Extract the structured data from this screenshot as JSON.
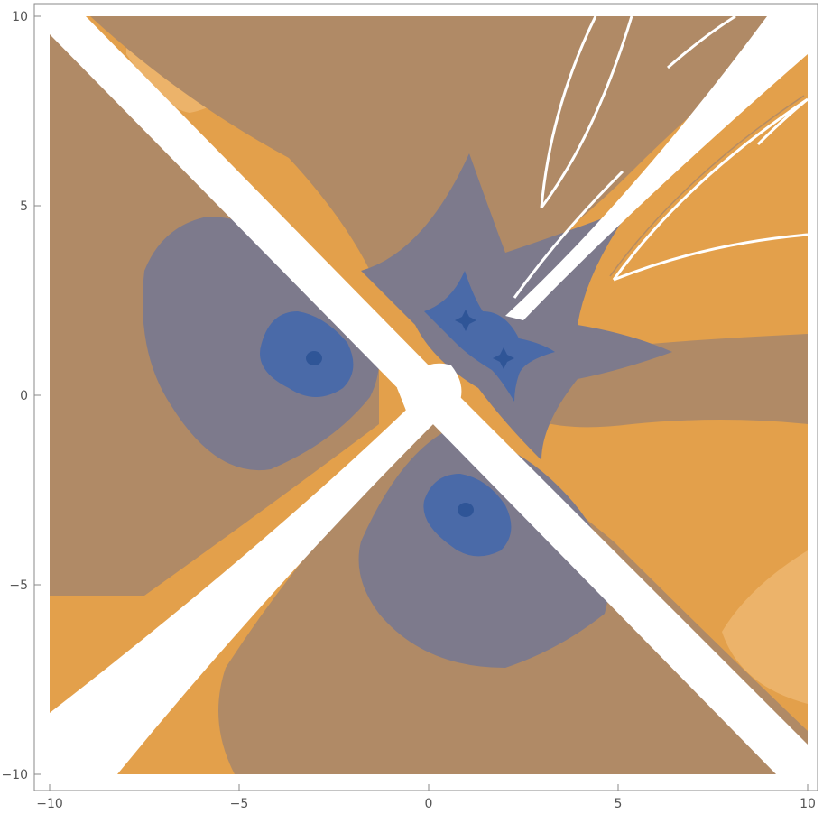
{
  "chart_data": {
    "type": "heatmap",
    "plot_style": "contour",
    "title": "",
    "xlabel": "",
    "ylabel": "",
    "xlim": [
      -10,
      10
    ],
    "ylim": [
      -10,
      10
    ],
    "grid": false,
    "legend": "none",
    "x_ticks": [
      {
        "value": -10,
        "label": "−10"
      },
      {
        "value": -5,
        "label": "−5"
      },
      {
        "value": 0,
        "label": "0"
      },
      {
        "value": 5,
        "label": "5"
      },
      {
        "value": 10,
        "label": "10"
      }
    ],
    "y_ticks": [
      {
        "value": 10,
        "label": "10"
      },
      {
        "value": 5,
        "label": "5"
      },
      {
        "value": 0,
        "label": "0"
      },
      {
        "value": -5,
        "label": "−5"
      },
      {
        "value": -10,
        "label": "−10"
      }
    ],
    "color_levels": [
      "#2f5597",
      "#4a6aa8",
      "#7d7a8c",
      "#b08a66",
      "#e3a04b",
      "#ecb36a",
      "#ffffff"
    ],
    "minima": [
      {
        "x": -3,
        "y": 1
      },
      {
        "x": 1,
        "y": -3
      },
      {
        "x": 1,
        "y": 2
      },
      {
        "x": 2,
        "y": 1
      }
    ],
    "white_bands": [
      {
        "name": "diagonal x+y=1",
        "direction": "top-left to bottom-right"
      },
      {
        "name": "diagonal y=x",
        "direction": "bottom-left to top-right"
      }
    ]
  }
}
